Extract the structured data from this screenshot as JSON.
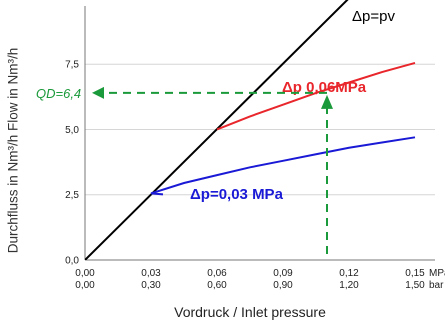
{
  "chart_data": {
    "type": "line",
    "ylabel": "Durchfluss in Nm³/h  Flow in Nm³/h",
    "xlabel": "Vordruck / Inlet pressure",
    "x_ticks_mpa": [
      "0,00",
      "0,03",
      "0,06",
      "0,09",
      "0,12",
      "0,15"
    ],
    "x_ticks_bar": [
      "0,00",
      "0,30",
      "0,60",
      "0,90",
      "1,20",
      "1,50"
    ],
    "x_unit_mpa": "MPa",
    "x_unit_bar": "bar",
    "y_ticks": [
      "0,0",
      "2,5",
      "5,0",
      "7,5"
    ],
    "xlim": [
      0,
      0.15
    ],
    "ylim": [
      0,
      9.5
    ],
    "grid": "horizontal",
    "series": [
      {
        "name": "Δp=pv",
        "color": "#000000",
        "x": [
          0,
          0.14
        ],
        "y": [
          0,
          11.7
        ]
      },
      {
        "name": "Δp 0,06MPa",
        "color": "#e8262b",
        "x": [
          0.06,
          0.075,
          0.09,
          0.105,
          0.12,
          0.135,
          0.15
        ],
        "y": [
          5.0,
          5.5,
          5.95,
          6.4,
          6.8,
          7.2,
          7.55
        ]
      },
      {
        "name": "Δp=0,03 MPa",
        "color": "#1a1ad6",
        "x": [
          0.03,
          0.045,
          0.06,
          0.075,
          0.09,
          0.105,
          0.12,
          0.135,
          0.15
        ],
        "y": [
          2.55,
          2.95,
          3.25,
          3.55,
          3.8,
          4.05,
          4.3,
          4.5,
          4.7
        ]
      }
    ],
    "annotation": {
      "label": "QD=6,4",
      "color": "#1a9a3a",
      "x": 0.11,
      "y": 6.4
    }
  }
}
